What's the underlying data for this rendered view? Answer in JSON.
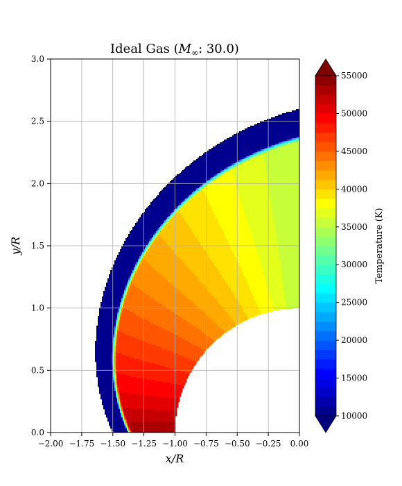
{
  "chart_data": {
    "type": "heatmap",
    "title_main": "Ideal Gas (",
    "title_sym": "M",
    "title_sub": "∞",
    "title_rest": ": 30.0)",
    "xlabel_var": "x",
    "xlabel_rest": "/R",
    "ylabel_var": "y",
    "ylabel_rest": "/R",
    "xlim": [
      -2.0,
      0.0
    ],
    "ylim": [
      0.0,
      3.0
    ],
    "x_ticks": [
      -2.0,
      -1.75,
      -1.5,
      -1.25,
      -1.0,
      -0.75,
      -0.5,
      -0.25,
      0.0
    ],
    "x_tick_labels": [
      "−2.00",
      "−1.75",
      "−1.50",
      "−1.25",
      "−1.00",
      "−0.75",
      "−0.50",
      "−0.25",
      "0.00"
    ],
    "y_ticks": [
      0.0,
      0.5,
      1.0,
      1.5,
      2.0,
      2.5,
      3.0
    ],
    "y_tick_labels": [
      "0.0",
      "0.5",
      "1.0",
      "1.5",
      "2.0",
      "2.5",
      "3.0"
    ],
    "grid": true,
    "body_radius": 1.0,
    "domain_outer": {
      "x_at_axis": -1.5,
      "top_y_at_x0": 2.6
    },
    "shock": {
      "x_at_axis": -1.38,
      "top_y_at_x0": 2.38
    },
    "colorbar": {
      "label": "Temperature (K)",
      "min": 10000,
      "max": 55000,
      "ticks": [
        10000,
        15000,
        20000,
        25000,
        30000,
        35000,
        40000,
        45000,
        50000,
        55000
      ],
      "tick_labels": [
        "10000",
        "15000",
        "20000",
        "25000",
        "30000",
        "35000",
        "40000",
        "45000",
        "50000",
        "55000"
      ],
      "extend": "both",
      "colormap": "jet"
    },
    "temperature_levels": {
      "freestream": 10000,
      "stagnation": 54000,
      "post_shock_top": 35000,
      "body_wall_min": 39000
    }
  }
}
